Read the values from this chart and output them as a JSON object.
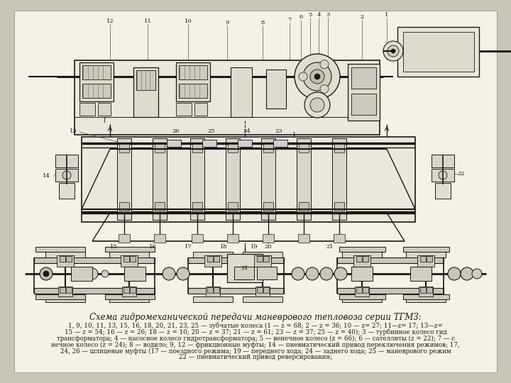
{
  "title": "Схема гидромеханической передачи маневрового тепловоза серии ТГМЗ:",
  "caption_lines": [
    "1, 9, 10, 11, 13, 15, 16, 18, 20, 21, 23, 25 — зубчатые колеса (1 — z = 68; 2 — z = 36; 10 — z= 27; 11—z= 17; 13—z=",
    "15 — z = 54; 16 — z = 26; 18 — z = 10; 20 — z = 37; 21 — z = 61; 23 — z = 37; 25 — z = 40); 3 — турбинное колесо гид",
    "трансформатора; 4 — насосное колесо гидротрансформатора; 5 — венечное колесо (z = 66); 6 — сателлиты (z = 22); 7 — с",
    "нечное колесо (z = 24); 8 — водило; 9, 12 — фрикционные муфты; 14 — пневматический привод переключения режимов; 17,",
    "24, 26 — шлицевые муфты (17 — поездного режима; 19 — переднего хода; 24 — заднего хода; 25 — маневрового режим",
    "22 — пневматический привод реверсирования;"
  ],
  "outer_bg": "#c8c6b8",
  "inner_bg": "#f4f2e8",
  "line_color": "#1a1810",
  "text_color": "#1a1810",
  "title_fontsize": 8.5,
  "caption_fontsize": 6.2,
  "figsize": [
    7.2,
    5.4
  ],
  "dpi": 100
}
